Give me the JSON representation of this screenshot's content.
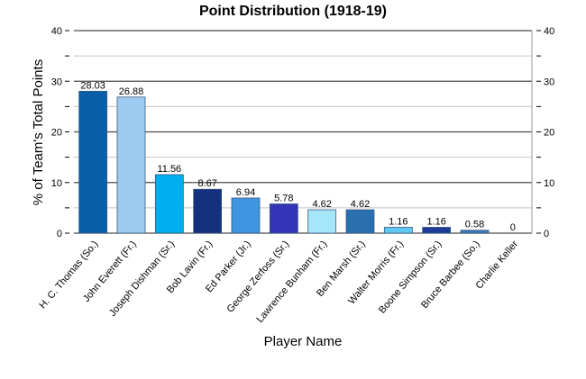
{
  "chart_data": {
    "type": "bar",
    "title": "Point Distribution (1918-19)",
    "xlabel": "Player Name",
    "ylabel": "% of Team's Total Points",
    "ylim": [
      0,
      40
    ],
    "yticks": [
      "0",
      "10",
      "20",
      "30",
      "40"
    ],
    "grid": true,
    "legend": "none",
    "categories": [
      "H. C. Thomas (So.)",
      "John Everett (Fr.)",
      "Joseph Dishman (Sr.)",
      "Bob Lavin (Fr.)",
      "Ed Parker (Jr.)",
      "George Zerfoss (Sr.)",
      "Lawrence Bunham (Fr.)",
      "Ben Marsh (Sr.)",
      "Walter Morris (Fr.)",
      "Boone Simpson (Sr.)",
      "Bruce Barbee (So.)",
      "Charlie Keller"
    ],
    "values": [
      28.03,
      26.88,
      11.56,
      8.67,
      6.94,
      5.78,
      4.62,
      4.62,
      1.16,
      1.16,
      0.58,
      0
    ],
    "value_labels": [
      "28.03",
      "26.88",
      "11.56",
      "8.67",
      "6.94",
      "5.78",
      "4.62",
      "4.62",
      "1.16",
      "1.16",
      "0.58",
      "0"
    ],
    "colors": [
      "#0a5fa8",
      "#9ccbef",
      "#00aeef",
      "#14307f",
      "#3f95e0",
      "#3434b8",
      "#a6e6fb",
      "#2a6fb0",
      "#5ec9f5",
      "#1c3b96",
      "#3b78bd",
      "#9fbbe0"
    ]
  }
}
